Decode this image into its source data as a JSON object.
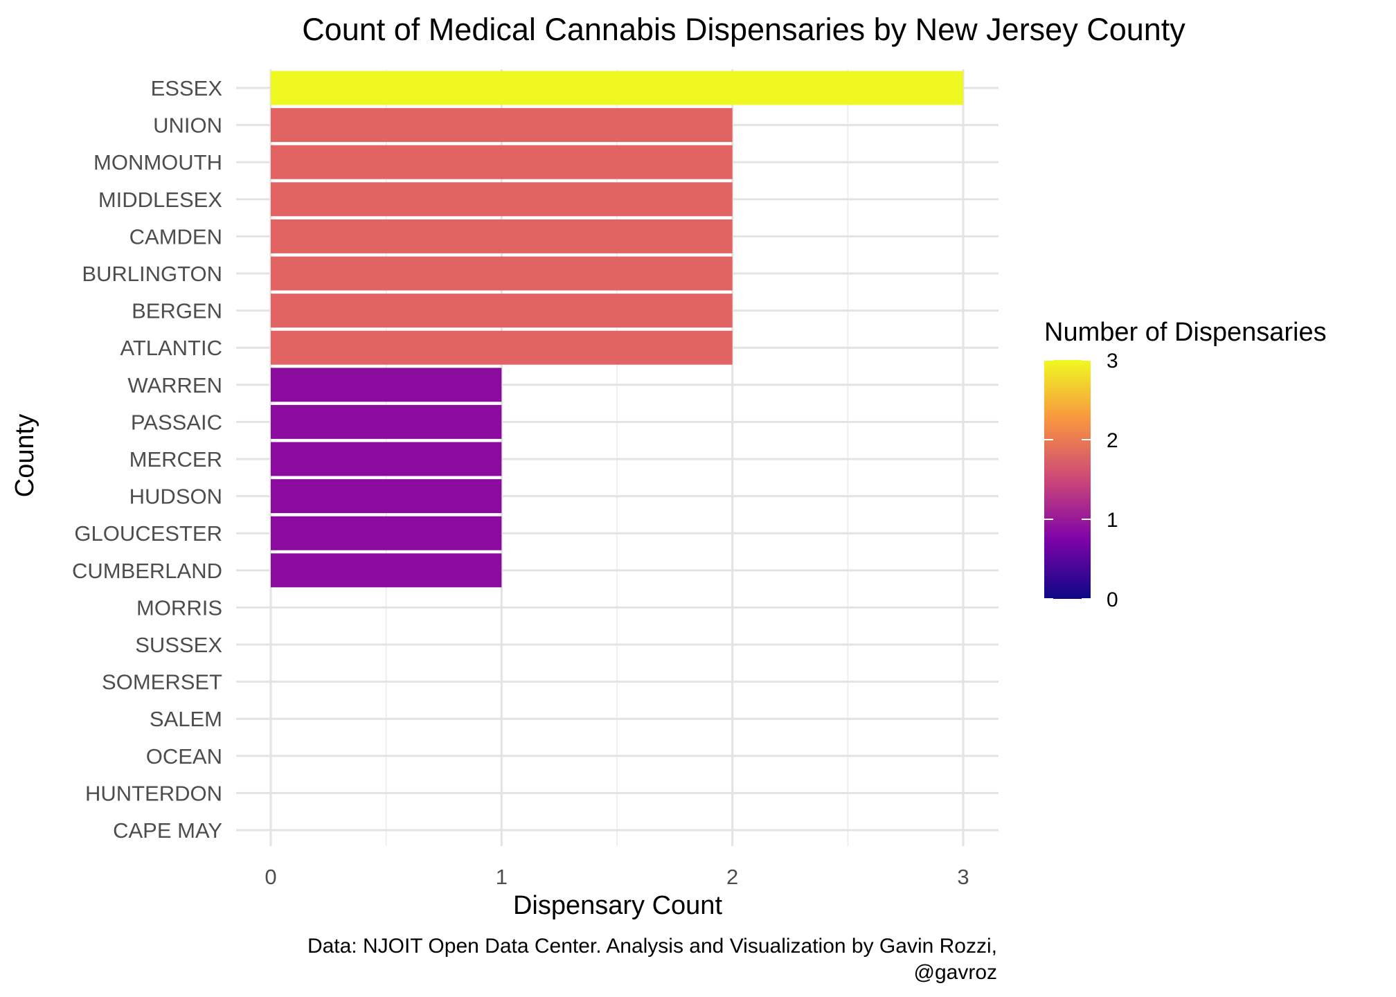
{
  "chart_data": {
    "type": "bar",
    "orientation": "horizontal",
    "title": "Count of Medical Cannabis Dispensaries by New Jersey County",
    "xlabel": "Dispensary Count",
    "ylabel": "County",
    "xlim": [
      0,
      3
    ],
    "x_ticks": [
      "0",
      "1",
      "2",
      "3"
    ],
    "categories": [
      "ESSEX",
      "UNION",
      "MONMOUTH",
      "MIDDLESEX",
      "CAMDEN",
      "BURLINGTON",
      "BERGEN",
      "ATLANTIC",
      "WARREN",
      "PASSAIC",
      "MERCER",
      "HUDSON",
      "GLOUCESTER",
      "CUMBERLAND",
      "MORRIS",
      "SUSSEX",
      "SOMERSET",
      "SALEM",
      "OCEAN",
      "HUNTERDON",
      "CAPE MAY"
    ],
    "values": [
      3,
      2,
      2,
      2,
      2,
      2,
      2,
      2,
      1,
      1,
      1,
      1,
      1,
      1,
      0,
      0,
      0,
      0,
      0,
      0,
      0
    ],
    "bar_colors": {
      "3": "#EFF821",
      "2": "#E16462",
      "1": "#8A0B9E"
    },
    "grid": true,
    "legend": {
      "title": "Number of Dispensaries",
      "placement": "right",
      "labels": [
        "3",
        "2",
        "1",
        "0"
      ],
      "gradient_colors": [
        "#F0F921",
        "#F89540",
        "#CC4778",
        "#7E03A8",
        "#0D0887"
      ]
    },
    "caption_line1": "Data: NJOIT Open Data Center. Analysis and Visualization by Gavin Rozzi,",
    "caption_line2": "@gavroz"
  }
}
